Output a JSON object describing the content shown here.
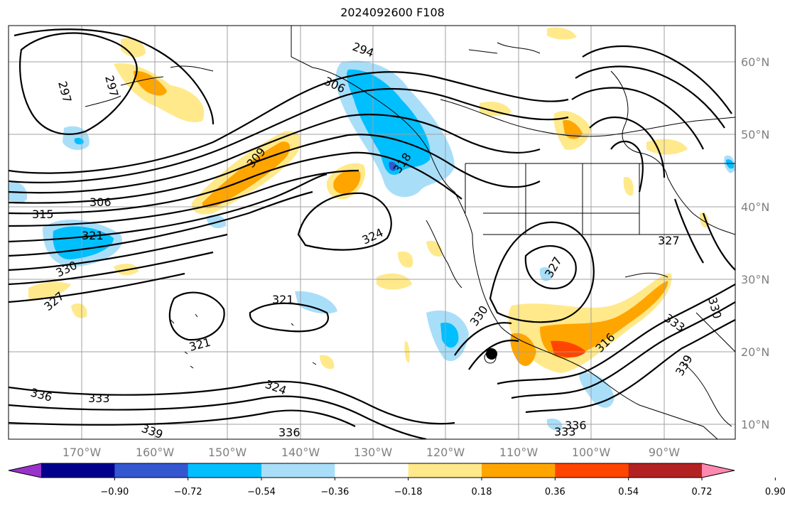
{
  "title": "2024092600 F108",
  "map": {
    "lon_ticks": [
      "170°W",
      "160°W",
      "150°W",
      "140°W",
      "130°W",
      "120°W",
      "110°W",
      "100°W",
      "90°W"
    ],
    "lat_ticks": [
      "60°N",
      "50°N",
      "40°N",
      "30°N",
      "20°N",
      "10°N"
    ],
    "contour_labels": [
      "294",
      "297",
      "297",
      "306",
      "306",
      "309",
      "315",
      "316",
      "318",
      "321",
      "321",
      "321",
      "324",
      "324",
      "327",
      "327",
      "327",
      "330",
      "330",
      "330",
      "333",
      "333",
      "333",
      "336",
      "336",
      "336",
      "339",
      "339"
    ]
  },
  "colorbar": {
    "ticks": [
      "−0.90",
      "−0.72",
      "−0.54",
      "−0.36",
      "−0.18",
      "0.18",
      "0.36",
      "0.54",
      "0.72",
      "0.90"
    ],
    "colors": [
      "#9932cc",
      "#00008b",
      "#3457d0",
      "#00bfff",
      "#a9def9",
      "#ffffff",
      "#ffe98a",
      "#ffa500",
      "#ff4500",
      "#b22222",
      "#ff88b0"
    ]
  }
}
